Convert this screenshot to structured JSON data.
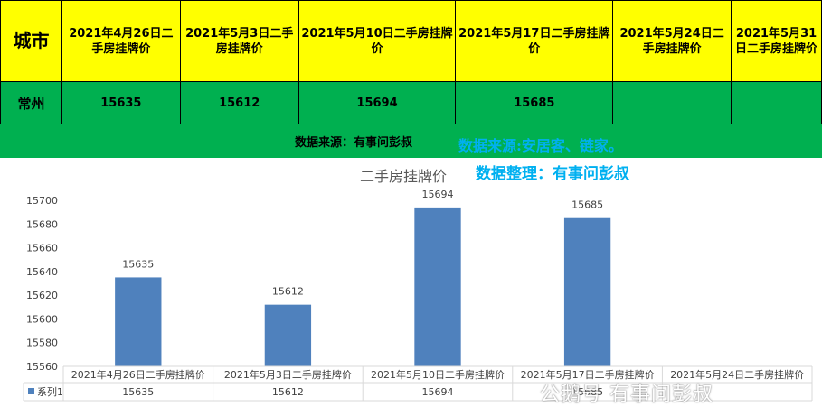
{
  "table": {
    "headers": [
      "城市",
      "2021年4月26日二手房挂牌价",
      "2021年5月3日二手房挂牌价",
      "2021年5月10日二手房挂牌价",
      "2021年5月17日二手房挂牌价",
      "2021年5月24日二手房挂牌价",
      "2021年5月31日二手房挂牌价"
    ],
    "rows": [
      {
        "city": "常州",
        "values": [
          "15635",
          "15612",
          "15694",
          "15685",
          "",
          ""
        ]
      }
    ]
  },
  "source_line": "数据来源：有事问彭叔",
  "overlay": {
    "source": "数据来源:安居客、链家。",
    "organizer": "数据整理：有事问彭叔"
  },
  "watermark": "公鹅号 有事问彭叔",
  "colors": {
    "header_bg": "#ffff00",
    "row_bg": "#00b050",
    "bar": "#4f81bd",
    "overlay_text": "#00b0f0"
  },
  "chart_data": {
    "type": "bar",
    "title": "二手房挂牌价",
    "categories": [
      "2021年4月26日二手房挂牌价",
      "2021年5月3日二手房挂牌价",
      "2021年5月10日二手房挂牌价",
      "2021年5月17日二手房挂牌价",
      "2021年5月24日二手房挂牌价"
    ],
    "series": [
      {
        "name": "系列1",
        "values": [
          15635,
          15612,
          15694,
          15685,
          null
        ]
      }
    ],
    "ylim": [
      15560,
      15700
    ],
    "yticks": [
      15560,
      15580,
      15600,
      15620,
      15640,
      15660,
      15680,
      15700
    ],
    "data_labels": true,
    "data_table": true,
    "grid": false,
    "legend": "data-table"
  }
}
